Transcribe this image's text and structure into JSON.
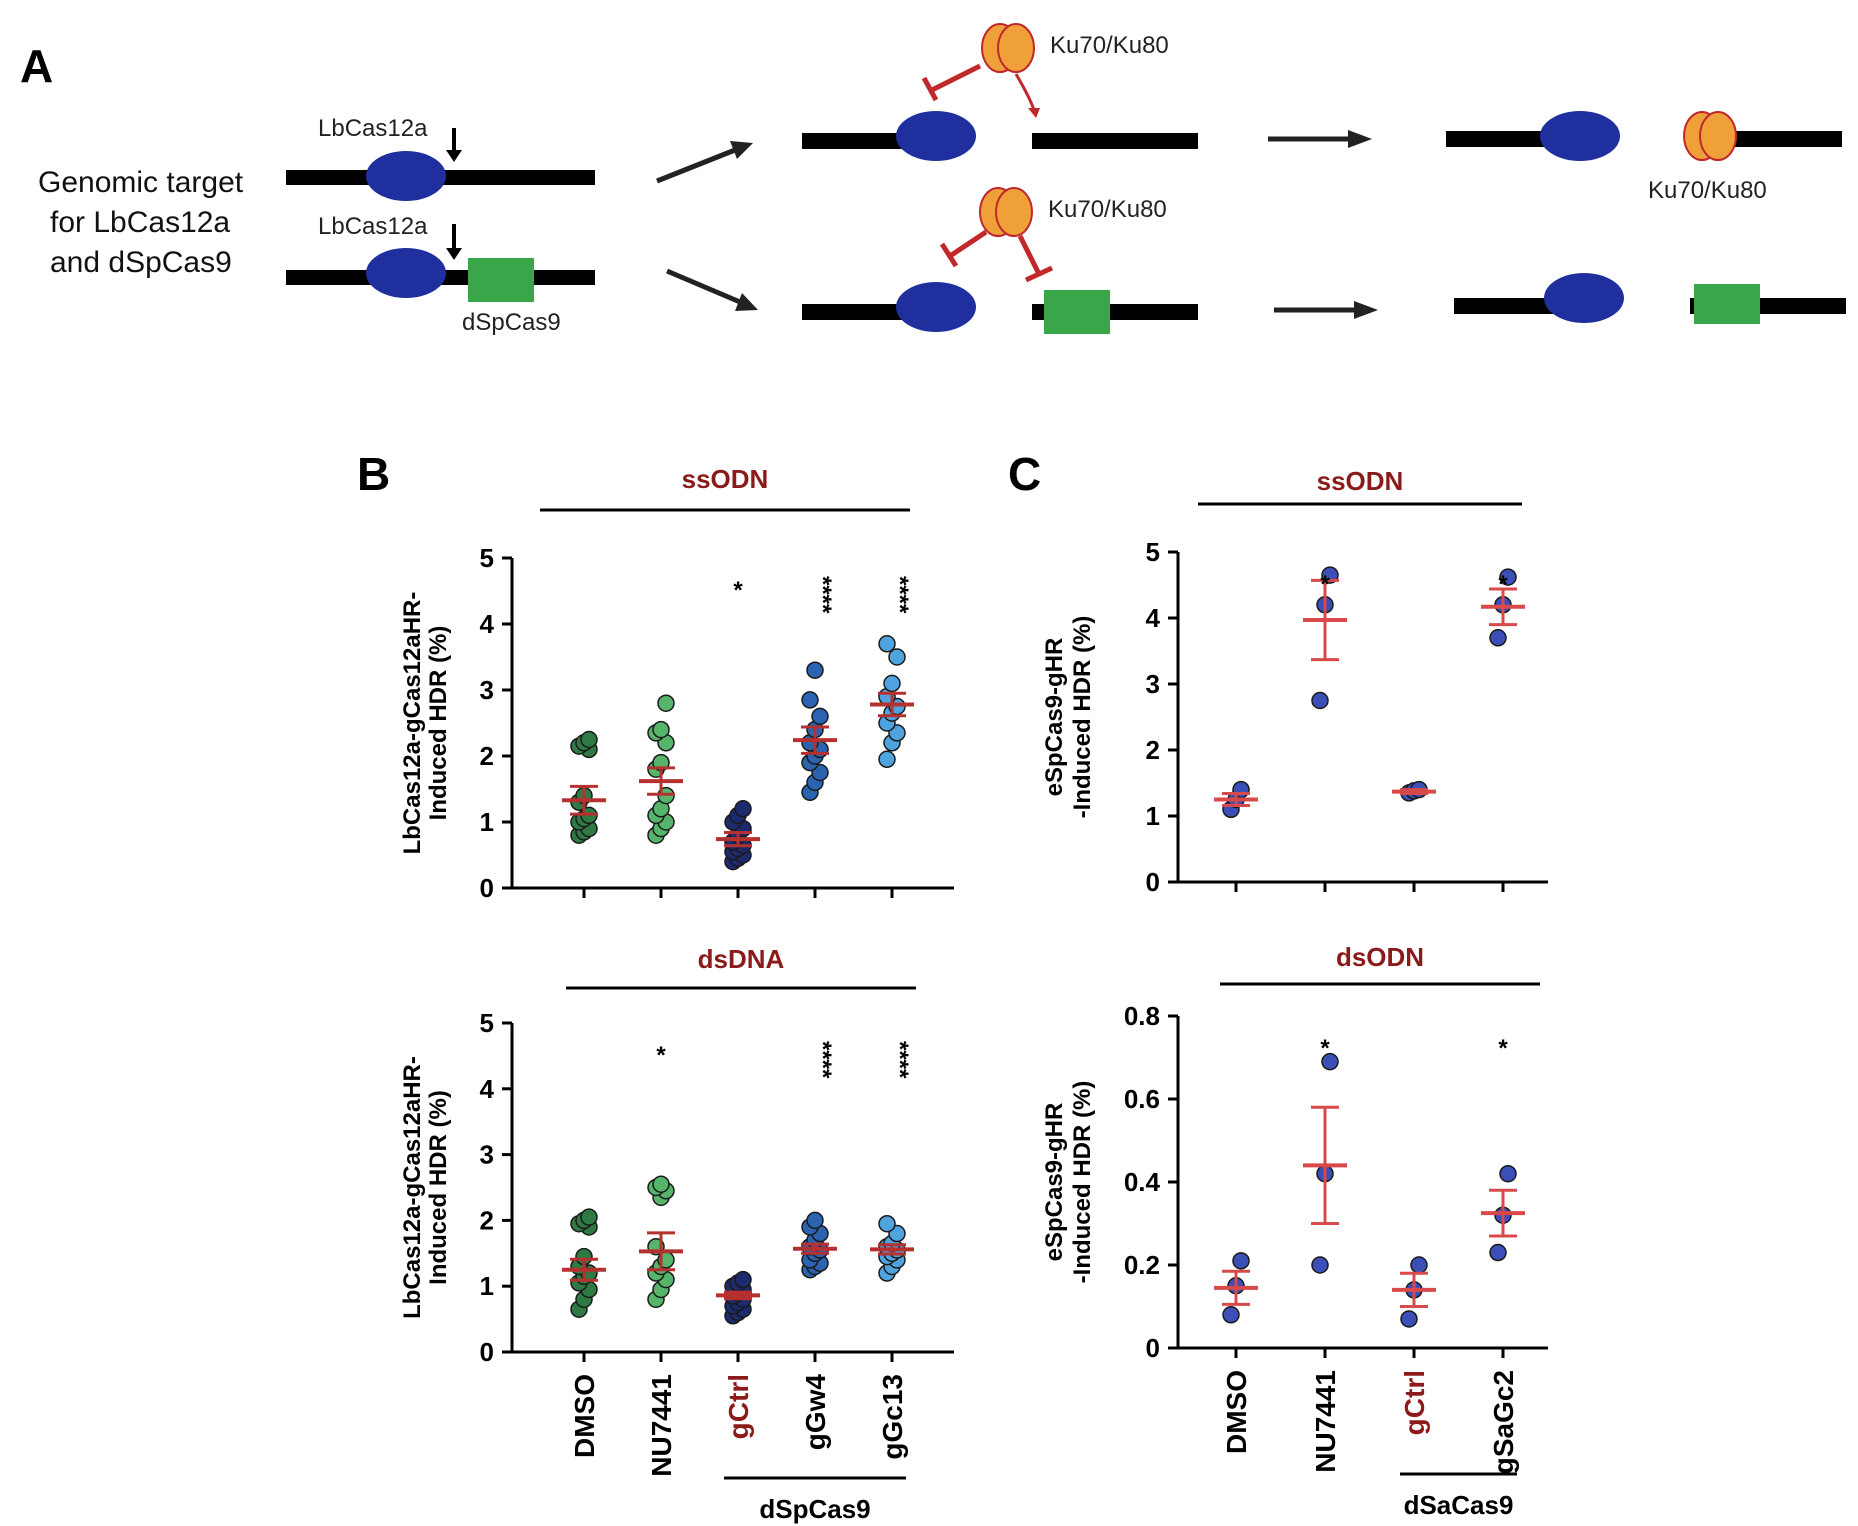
{
  "panel_a": {
    "label": "A",
    "target_label_lines": [
      "Genomic target",
      "for LbCas12a",
      "and dSpCas9"
    ],
    "lbcas12a_label": "LbCas12a",
    "dspcas9_label": "dSpCas9",
    "ku_label": "Ku70/Ku80",
    "colors": {
      "cas12a": "#1f2f9e",
      "dspcas9": "#3aa64a",
      "ku": "#f0a038",
      "inhibit": "#c0282c"
    }
  },
  "chart_data": [
    {
      "id": "B-top",
      "panel_label": "B",
      "type": "scatter",
      "title": "ssODN",
      "ylabel": [
        "LbCas12a-gCas12aHR-",
        "Induced HDR (%)"
      ],
      "ylim": [
        0,
        5
      ],
      "yticks": [
        "0",
        "1",
        "2",
        "3",
        "4",
        "5"
      ],
      "categories": [
        "DMSO",
        "NU7441",
        "gCtrl",
        "gGw4",
        "gGc13"
      ],
      "points": [
        [
          0.8,
          0.85,
          0.9,
          1.0,
          1.05,
          1.1,
          1.3,
          1.4,
          2.1,
          2.15,
          2.2,
          2.25
        ],
        [
          0.8,
          0.9,
          1.0,
          1.1,
          1.2,
          1.4,
          1.8,
          1.9,
          2.2,
          2.35,
          2.4,
          2.8
        ],
        [
          0.4,
          0.45,
          0.5,
          0.55,
          0.6,
          0.65,
          0.7,
          0.8,
          0.9,
          1.0,
          1.1,
          1.2
        ],
        [
          1.45,
          1.6,
          1.75,
          1.9,
          2.0,
          2.1,
          2.2,
          2.4,
          2.6,
          2.85,
          3.3
        ],
        [
          1.95,
          2.2,
          2.35,
          2.5,
          2.65,
          2.75,
          2.9,
          3.1,
          3.5,
          3.7
        ]
      ],
      "mean": [
        1.33,
        1.62,
        0.74,
        2.24,
        2.78
      ],
      "sem": [
        0.21,
        0.2,
        0.1,
        0.2,
        0.17
      ],
      "significance": [
        "",
        "",
        "*",
        "****",
        "****"
      ],
      "point_colors": [
        "#2f7a44",
        "#56b56a",
        "#1c2a6e",
        "#2a64b0",
        "#4fa3df"
      ],
      "mean_color": "#b5312f"
    },
    {
      "id": "B-bottom",
      "type": "scatter",
      "title": "dsDNA",
      "ylabel": [
        "LbCas12a-gCas12aHR-",
        "Induced HDR (%)"
      ],
      "ylim": [
        0,
        5
      ],
      "yticks": [
        "0",
        "1",
        "2",
        "3",
        "4",
        "5"
      ],
      "categories": [
        "DMSO",
        "NU7441",
        "gCtrl",
        "gGw4",
        "gGc13"
      ],
      "points": [
        [
          0.65,
          0.8,
          0.95,
          1.05,
          1.15,
          1.2,
          1.3,
          1.45,
          1.9,
          1.95,
          2.0,
          2.05
        ],
        [
          0.8,
          0.95,
          1.1,
          1.2,
          1.3,
          1.4,
          1.6,
          2.35,
          2.45,
          2.5,
          2.55
        ],
        [
          0.55,
          0.6,
          0.65,
          0.7,
          0.75,
          0.8,
          0.85,
          0.9,
          0.95,
          1.0,
          1.05,
          1.1
        ],
        [
          1.25,
          1.3,
          1.35,
          1.4,
          1.5,
          1.55,
          1.6,
          1.7,
          1.8,
          1.9,
          2.0
        ],
        [
          1.2,
          1.3,
          1.4,
          1.45,
          1.5,
          1.55,
          1.6,
          1.65,
          1.8,
          1.95
        ]
      ],
      "mean": [
        1.25,
        1.53,
        0.86,
        1.57,
        1.56
      ],
      "sem": [
        0.16,
        0.28,
        0.05,
        0.07,
        0.07
      ],
      "significance": [
        "",
        "*",
        "",
        "****",
        "****"
      ],
      "point_colors": [
        "#2f7a44",
        "#56b56a",
        "#1c2a6e",
        "#2a64b0",
        "#4fa3df"
      ],
      "mean_color": "#b5312f",
      "xgroup": {
        "label": "dSpCas9",
        "from": 2,
        "to": 4
      }
    },
    {
      "id": "C-top",
      "panel_label": "C",
      "type": "scatter",
      "title": "ssODN",
      "ylabel": [
        "eSpCas9-gHR",
        "-Induced HDR (%)"
      ],
      "ylim": [
        0,
        5
      ],
      "yticks": [
        "0",
        "1",
        "2",
        "3",
        "4",
        "5"
      ],
      "categories": [
        "DMSO",
        "NU7441",
        "gCtrl",
        "gSaGc2"
      ],
      "points": [
        [
          1.1,
          1.25,
          1.4
        ],
        [
          2.75,
          4.2,
          4.65
        ],
        [
          1.35,
          1.38,
          1.4
        ],
        [
          3.7,
          4.2,
          4.62
        ]
      ],
      "mean": [
        1.25,
        3.97,
        1.37,
        4.17
      ],
      "sem": [
        0.09,
        0.6,
        0.03,
        0.27
      ],
      "significance": [
        "",
        "*",
        "",
        "*"
      ],
      "point_colors": [
        "#3a4fb8",
        "#3a4fb8",
        "#3a4fb8",
        "#3a4fb8"
      ],
      "mean_color": "#d84a4a"
    },
    {
      "id": "C-bottom",
      "type": "scatter",
      "title": "dsODN",
      "ylabel": [
        "eSpCas9-gHR",
        "-Induced HDR (%)"
      ],
      "ylim": [
        0,
        0.8
      ],
      "yticks": [
        "0",
        "0.2",
        "0.4",
        "0.6",
        "0.8"
      ],
      "categories": [
        "DMSO",
        "NU7441",
        "gCtrl",
        "gSaGc2"
      ],
      "points": [
        [
          0.08,
          0.15,
          0.21
        ],
        [
          0.2,
          0.42,
          0.69
        ],
        [
          0.07,
          0.14,
          0.2
        ],
        [
          0.23,
          0.32,
          0.42
        ]
      ],
      "mean": [
        0.145,
        0.44,
        0.14,
        0.325
      ],
      "sem": [
        0.04,
        0.14,
        0.04,
        0.055
      ],
      "significance": [
        "",
        "*",
        "",
        "*"
      ],
      "point_colors": [
        "#3a4fb8",
        "#3a4fb8",
        "#3a4fb8",
        "#3a4fb8"
      ],
      "mean_color": "#d84a4a",
      "xgroup": {
        "label": "dSaCas9",
        "from": 2,
        "to": 3
      }
    }
  ]
}
